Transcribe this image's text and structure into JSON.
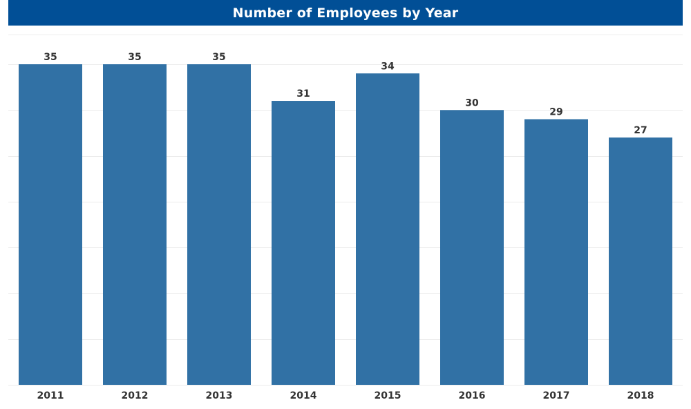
{
  "header": {
    "title": "Number of Employees by Year"
  },
  "colors": {
    "title_background": "#014f96",
    "bar": "#3171a5"
  },
  "chart_data": {
    "type": "bar",
    "title": "Number of Employees by Year",
    "categories": [
      "2011",
      "2012",
      "2013",
      "2014",
      "2015",
      "2016",
      "2017",
      "2018"
    ],
    "values": [
      35,
      35,
      35,
      31,
      34,
      30,
      29,
      27
    ],
    "xlabel": "",
    "ylabel": "",
    "ylim": [
      0,
      35
    ],
    "grid": true,
    "data_labels": true,
    "legend": "none"
  }
}
